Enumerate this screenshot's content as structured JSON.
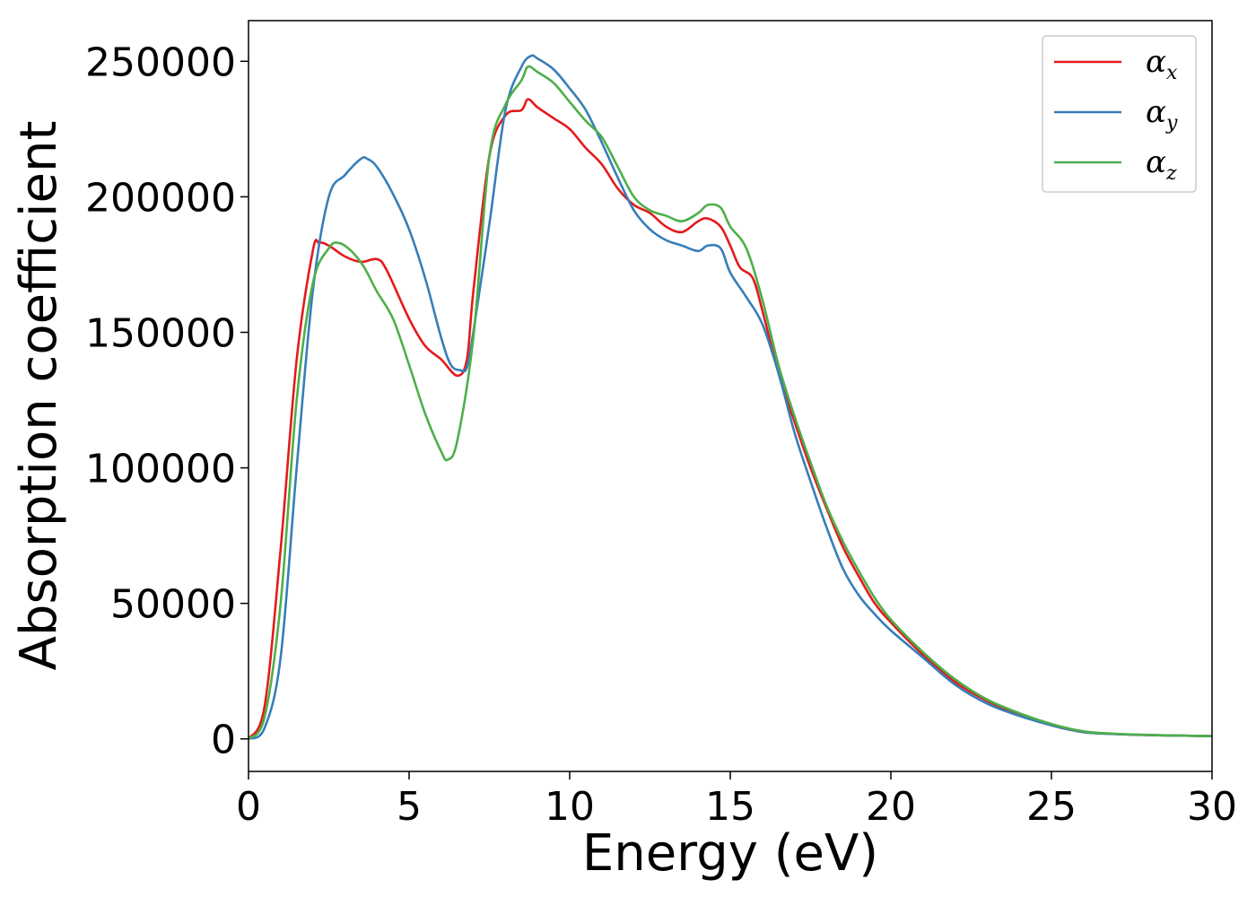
{
  "chart_data": {
    "type": "line",
    "xlabel": "Energy (eV)",
    "ylabel": "Absorption coefficient",
    "xlim": [
      0,
      30
    ],
    "ylim": [
      -12000,
      265000
    ],
    "x_ticks": [
      0,
      5,
      10,
      15,
      20,
      25,
      30
    ],
    "y_ticks": [
      0,
      50000,
      100000,
      150000,
      200000,
      250000
    ],
    "grid": false,
    "legend_position": "top-right",
    "series": [
      {
        "name": "α",
        "subscript": "x",
        "color": "#e41a1c",
        "x": [
          0,
          0.5,
          1.0,
          1.5,
          2.0,
          2.2,
          2.5,
          3.0,
          3.5,
          4.0,
          4.3,
          5.0,
          5.5,
          6.0,
          6.5,
          6.8,
          7.0,
          7.5,
          8.0,
          8.5,
          8.7,
          9.0,
          9.5,
          10.0,
          10.5,
          11.0,
          11.5,
          12.0,
          12.5,
          13.0,
          13.5,
          14.0,
          14.3,
          14.7,
          15.0,
          15.3,
          15.7,
          16.0,
          16.5,
          17.0,
          17.5,
          18.0,
          18.5,
          19.0,
          19.5,
          20.0,
          21.0,
          22.0,
          23.0,
          24.0,
          25.0,
          26.0,
          27.0,
          28.0,
          29.0,
          30.0
        ],
        "y": [
          0,
          12000,
          70000,
          140000,
          180000,
          183000,
          182000,
          178000,
          176000,
          177000,
          173000,
          155000,
          145000,
          140000,
          134000,
          140000,
          165000,
          215000,
          230000,
          232000,
          236000,
          233000,
          229000,
          225000,
          218000,
          212000,
          203000,
          197000,
          194000,
          189000,
          187000,
          191000,
          192000,
          189000,
          182000,
          174000,
          170000,
          158000,
          135000,
          117000,
          100000,
          85000,
          71000,
          60000,
          50000,
          43000,
          31000,
          21000,
          14000,
          9000,
          5000,
          2500,
          1800,
          1400,
          1200,
          1000
        ]
      },
      {
        "name": "α",
        "subscript": "y",
        "color": "#377eb8",
        "x": [
          0,
          0.5,
          1.0,
          1.5,
          2.0,
          2.5,
          3.0,
          3.5,
          3.7,
          4.0,
          4.5,
          5.0,
          5.5,
          6.0,
          6.3,
          6.6,
          6.8,
          7.0,
          7.5,
          8.0,
          8.5,
          8.8,
          9.0,
          9.5,
          10.0,
          10.5,
          11.0,
          11.5,
          12.0,
          12.5,
          13.0,
          13.5,
          14.0,
          14.3,
          14.7,
          15.0,
          15.5,
          16.0,
          16.5,
          17.0,
          17.5,
          18.0,
          18.5,
          19.0,
          19.5,
          20.0,
          21.0,
          22.0,
          23.0,
          24.0,
          25.0,
          26.0,
          27.0,
          28.0,
          29.0,
          30.0
        ],
        "y": [
          0,
          4000,
          30000,
          100000,
          165000,
          200000,
          208000,
          214000,
          214000,
          211000,
          201000,
          188000,
          170000,
          148000,
          138000,
          136000,
          137000,
          150000,
          190000,
          232000,
          248000,
          252000,
          251000,
          247000,
          240000,
          232000,
          220000,
          207000,
          195000,
          188000,
          184000,
          182000,
          180000,
          182000,
          181000,
          172000,
          163000,
          153000,
          135000,
          113000,
          95000,
          78000,
          63000,
          53000,
          46000,
          40000,
          30000,
          20000,
          13000,
          8500,
          5000,
          2500,
          1800,
          1400,
          1200,
          1000
        ]
      },
      {
        "name": "α",
        "subscript": "z",
        "color": "#4daf4a",
        "x": [
          0,
          0.5,
          1.0,
          1.5,
          2.0,
          2.5,
          2.8,
          3.2,
          3.6,
          4.0,
          4.5,
          5.0,
          5.5,
          6.0,
          6.2,
          6.5,
          7.0,
          7.5,
          8.0,
          8.5,
          8.7,
          9.0,
          9.5,
          10.0,
          10.5,
          11.0,
          11.5,
          12.0,
          12.5,
          13.0,
          13.5,
          14.0,
          14.3,
          14.7,
          15.0,
          15.5,
          16.0,
          16.5,
          17.0,
          17.5,
          18.0,
          18.5,
          19.0,
          19.5,
          20.0,
          21.0,
          22.0,
          23.0,
          24.0,
          25.0,
          26.0,
          27.0,
          28.0,
          29.0,
          30.0
        ],
        "y": [
          0,
          8000,
          50000,
          125000,
          168000,
          181000,
          183000,
          180000,
          174000,
          165000,
          155000,
          138000,
          120000,
          106000,
          103000,
          110000,
          148000,
          215000,
          234000,
          243000,
          248000,
          246000,
          242000,
          235000,
          228000,
          222000,
          211000,
          200000,
          195000,
          193000,
          191000,
          194000,
          197000,
          196000,
          189000,
          181000,
          162000,
          138000,
          119000,
          102000,
          86000,
          73000,
          62000,
          52000,
          44000,
          32000,
          22000,
          14500,
          9500,
          5500,
          2800,
          1900,
          1500,
          1200,
          1000
        ]
      }
    ]
  }
}
